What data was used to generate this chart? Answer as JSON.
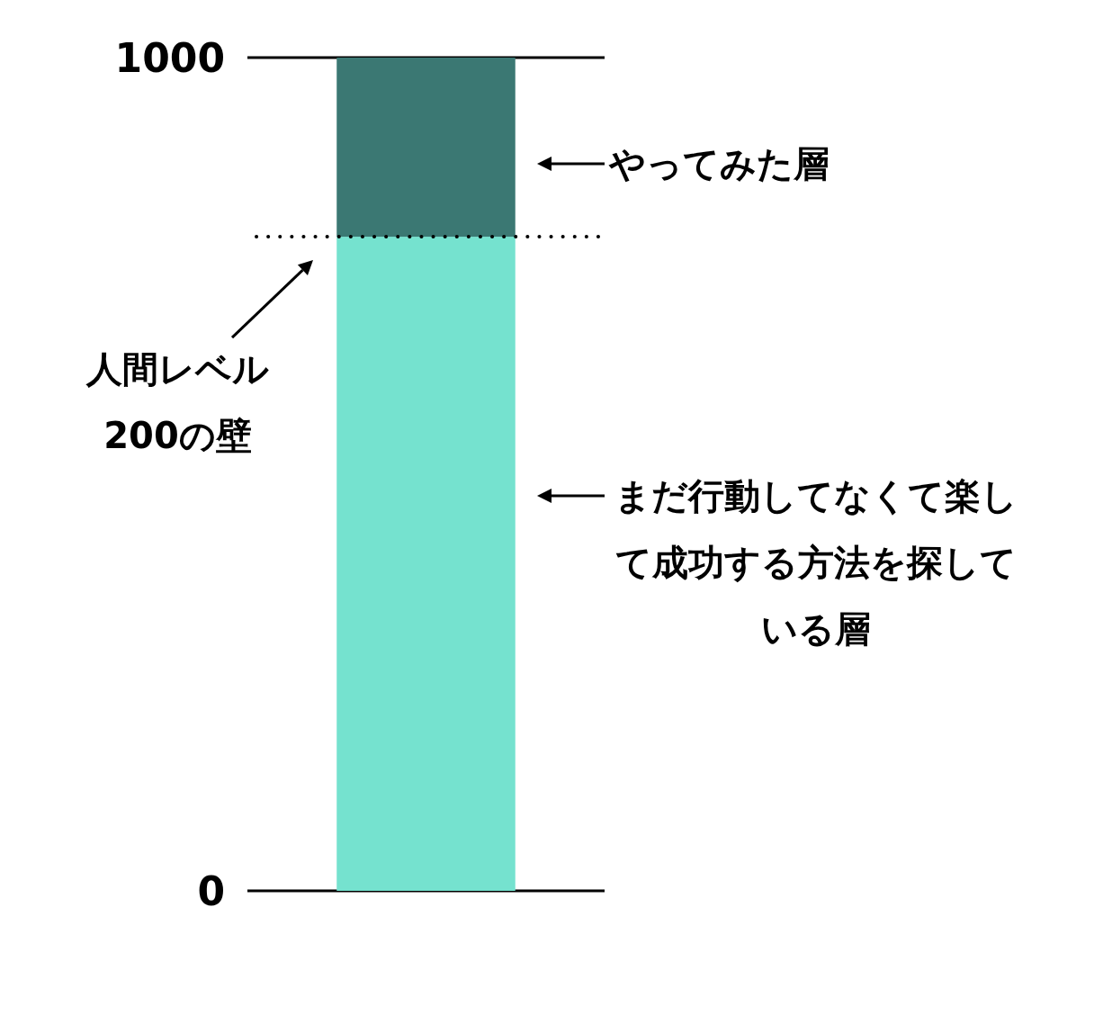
{
  "chart_data": {
    "type": "bar",
    "categories": [
      null
    ],
    "stacked": true,
    "series": [
      {
        "color": "#75e2cf",
        "values": [
          785
        ]
      },
      {
        "color": "#3b7873",
        "values": [
          215
        ]
      }
    ],
    "ylim": [
      0,
      1000
    ],
    "yticks": [
      0,
      1000
    ],
    "grid": "y",
    "ref_lines": [
      {
        "axis": "y",
        "value": 785,
        "label": "人間レベル200の壁",
        "line_style": "dotted"
      }
    ],
    "annotations": [
      "やってみた層",
      "まだ行動してなくて楽して成功する方法を探している層"
    ]
  }
}
